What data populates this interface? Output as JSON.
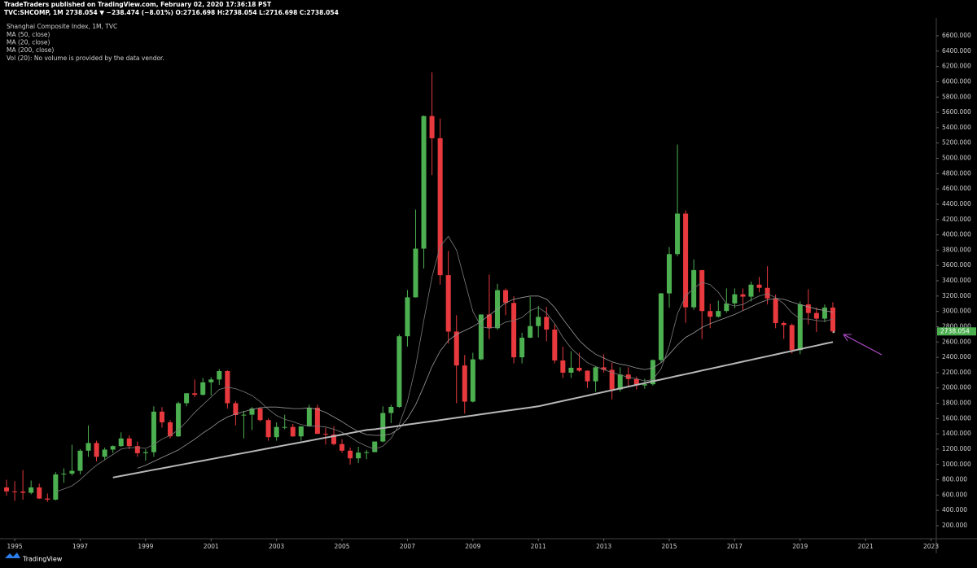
{
  "header": {
    "line1": "TradeTraders published on TradingView.com, February 02, 2020 17:36:18 PST",
    "line2": "TVC:SHCOMP, 1M 2738.054 ▼ −238.474 (−8.01%) O:2716.698 H:2738.054 L:2716.698 C:2738.054"
  },
  "footer": "TradingView",
  "chart_data": {
    "type": "candlestick",
    "title": "Shanghai Composite Index, 1M, TVC",
    "note": "Vol (20): No volume is provided by the data vendor.",
    "up_color": "#4caf50",
    "down_color": "#e8393e",
    "xlim": [
      1994.55,
      2023.16
    ],
    "xticks": [
      1995,
      1997,
      1999,
      2001,
      2003,
      2005,
      2007,
      2009,
      2011,
      2013,
      2015,
      2017,
      2019,
      2021,
      2023
    ],
    "ylim": [
      30,
      6834
    ],
    "yticks": [
      {
        "value": 200,
        "label": "200.000"
      },
      {
        "value": 400,
        "label": "400.000"
      },
      {
        "value": 600,
        "label": "600.000"
      },
      {
        "value": 800,
        "label": "800.000"
      },
      {
        "value": 1000,
        "label": "1000.000"
      },
      {
        "value": 1200,
        "label": "1200.000"
      },
      {
        "value": 1400,
        "label": "1400.000"
      },
      {
        "value": 1600,
        "label": "1600.000"
      },
      {
        "value": 1800,
        "label": "1800.000"
      },
      {
        "value": 2000,
        "label": "2000.000"
      },
      {
        "value": 2200,
        "label": "2200.000"
      },
      {
        "value": 2400,
        "label": "2400.000"
      },
      {
        "value": 2600,
        "label": "2600.000"
      },
      {
        "value": 2800,
        "label": "2800.000"
      },
      {
        "value": 3000,
        "label": "3000.000"
      },
      {
        "value": 3200,
        "label": "3200.000"
      },
      {
        "value": 3400,
        "label": "3400.000"
      },
      {
        "value": 3600,
        "label": "3600.000"
      },
      {
        "value": 3800,
        "label": "3800.000"
      },
      {
        "value": 4000,
        "label": "4000.000"
      },
      {
        "value": 4200,
        "label": "4200.000"
      },
      {
        "value": 4400,
        "label": "4400.000"
      },
      {
        "value": 4600,
        "label": "4600.000"
      },
      {
        "value": 4800,
        "label": "4800.000"
      },
      {
        "value": 5000,
        "label": "5000.000"
      },
      {
        "value": 5200,
        "label": "5200.000"
      },
      {
        "value": 5400,
        "label": "5400.000"
      },
      {
        "value": 5600,
        "label": "5600.000"
      },
      {
        "value": 5800,
        "label": "5800.000"
      },
      {
        "value": 6000,
        "label": "6000.000"
      },
      {
        "value": 6200,
        "label": "6200.000"
      },
      {
        "value": 6400,
        "label": "6400.000"
      },
      {
        "value": 6600,
        "label": "6600.000"
      }
    ],
    "grid": false,
    "x": [
      1994.75,
      1995,
      1995.25,
      1995.5,
      1995.75,
      1996,
      1996.25,
      1996.5,
      1996.75,
      1997,
      1997.25,
      1997.5,
      1997.75,
      1998,
      1998.25,
      1998.5,
      1998.75,
      1999,
      1999.25,
      1999.5,
      1999.75,
      2000,
      2000.25,
      2000.5,
      2000.75,
      2001,
      2001.25,
      2001.5,
      2001.75,
      2002,
      2002.25,
      2002.5,
      2002.75,
      2003,
      2003.25,
      2003.5,
      2003.75,
      2004,
      2004.25,
      2004.5,
      2004.75,
      2005,
      2005.25,
      2005.5,
      2005.75,
      2006,
      2006.25,
      2006.5,
      2006.75,
      2007,
      2007.25,
      2007.5,
      2007.75,
      2008,
      2008.25,
      2008.5,
      2008.75,
      2009,
      2009.25,
      2009.5,
      2009.75,
      2010,
      2010.25,
      2010.5,
      2010.75,
      2011,
      2011.25,
      2011.5,
      2011.75,
      2012,
      2012.25,
      2012.5,
      2012.75,
      2013,
      2013.25,
      2013.5,
      2013.75,
      2014,
      2014.25,
      2014.5,
      2014.75,
      2015,
      2015.25,
      2015.5,
      2015.75,
      2016,
      2016.25,
      2016.5,
      2016.75,
      2017,
      2017.25,
      2017.5,
      2017.75,
      2018,
      2018.25,
      2018.5,
      2018.75,
      2019,
      2019.25,
      2019.5,
      2019.75,
      2020
    ],
    "candles": [
      [
        700,
        800,
        590,
        648
      ],
      [
        648,
        780,
        524,
        646
      ],
      [
        646,
        926,
        540,
        630
      ],
      [
        630,
        790,
        610,
        700
      ],
      [
        700,
        750,
        550,
        555
      ],
      [
        555,
        620,
        512,
        540
      ],
      [
        540,
        900,
        530,
        870
      ],
      [
        870,
        950,
        760,
        880
      ],
      [
        880,
        1258,
        855,
        917
      ],
      [
        917,
        1200,
        870,
        1180
      ],
      [
        1180,
        1510,
        1100,
        1280
      ],
      [
        1280,
        1310,
        1040,
        1100
      ],
      [
        1100,
        1220,
        1060,
        1194
      ],
      [
        1194,
        1250,
        1150,
        1240
      ],
      [
        1240,
        1420,
        1230,
        1340
      ],
      [
        1340,
        1380,
        1200,
        1240
      ],
      [
        1240,
        1300,
        1100,
        1147
      ],
      [
        1147,
        1200,
        1050,
        1160
      ],
      [
        1160,
        1760,
        1100,
        1690
      ],
      [
        1690,
        1750,
        1480,
        1550
      ],
      [
        1550,
        1580,
        1340,
        1367
      ],
      [
        1367,
        1820,
        1360,
        1800
      ],
      [
        1800,
        1930,
        1760,
        1930
      ],
      [
        1930,
        2110,
        1880,
        1910
      ],
      [
        1910,
        2130,
        1900,
        2073
      ],
      [
        2073,
        2140,
        1900,
        2110
      ],
      [
        2110,
        2245,
        2040,
        2220
      ],
      [
        2220,
        2230,
        1730,
        1800
      ],
      [
        1800,
        1830,
        1510,
        1646
      ],
      [
        1646,
        1700,
        1340,
        1650
      ],
      [
        1650,
        1750,
        1450,
        1730
      ],
      [
        1730,
        1750,
        1560,
        1580
      ],
      [
        1580,
        1600,
        1310,
        1357
      ],
      [
        1357,
        1550,
        1310,
        1490
      ],
      [
        1490,
        1650,
        1460,
        1490
      ],
      [
        1490,
        1530,
        1360,
        1367
      ],
      [
        1367,
        1500,
        1310,
        1497
      ],
      [
        1497,
        1780,
        1490,
        1740
      ],
      [
        1740,
        1780,
        1400,
        1400
      ],
      [
        1400,
        1480,
        1260,
        1390
      ],
      [
        1390,
        1500,
        1250,
        1266
      ],
      [
        1266,
        1330,
        1150,
        1180
      ],
      [
        1180,
        1220,
        998,
        1080
      ],
      [
        1080,
        1230,
        1020,
        1155
      ],
      [
        1155,
        1190,
        1070,
        1161
      ],
      [
        1161,
        1300,
        1160,
        1300
      ],
      [
        1300,
        1760,
        1290,
        1672
      ],
      [
        1672,
        1780,
        1540,
        1752
      ],
      [
        1752,
        2700,
        1740,
        2675
      ],
      [
        2675,
        3280,
        2540,
        3183
      ],
      [
        3183,
        4330,
        3180,
        3820
      ],
      [
        3820,
        5560,
        3560,
        5552
      ],
      [
        5552,
        6124,
        4780,
        5262
      ],
      [
        5262,
        5520,
        3350,
        3473
      ],
      [
        3473,
        3790,
        2580,
        2736
      ],
      [
        2736,
        2950,
        1800,
        2293
      ],
      [
        2293,
        2430,
        1664,
        1821
      ],
      [
        1821,
        2460,
        1810,
        2373
      ],
      [
        2373,
        2960,
        2360,
        2959
      ],
      [
        2959,
        3480,
        2640,
        2780
      ],
      [
        2780,
        3360,
        2760,
        3277
      ],
      [
        3277,
        3300,
        2950,
        3110
      ],
      [
        3110,
        3200,
        2320,
        2400
      ],
      [
        2400,
        2720,
        2320,
        2656
      ],
      [
        2656,
        3190,
        2650,
        2808
      ],
      [
        2808,
        3070,
        2660,
        2928
      ],
      [
        2928,
        3060,
        2610,
        2762
      ],
      [
        2762,
        2830,
        2320,
        2359
      ],
      [
        2359,
        2540,
        2130,
        2199
      ],
      [
        2199,
        2480,
        2130,
        2263
      ],
      [
        2263,
        2460,
        2210,
        2225
      ],
      [
        2225,
        2230,
        1999,
        2086
      ],
      [
        2086,
        2280,
        1950,
        2269
      ],
      [
        2269,
        2440,
        2200,
        2236
      ],
      [
        2236,
        2330,
        1850,
        1979
      ],
      [
        1979,
        2270,
        1950,
        2175
      ],
      [
        2175,
        2270,
        2020,
        2116
      ],
      [
        2116,
        2150,
        1980,
        2033
      ],
      [
        2033,
        2120,
        1990,
        2048
      ],
      [
        2048,
        2370,
        2030,
        2364
      ],
      [
        2364,
        3240,
        2330,
        3235
      ],
      [
        3235,
        3840,
        3050,
        3748
      ],
      [
        3748,
        5180,
        3720,
        4277
      ],
      [
        4277,
        4320,
        2850,
        3053
      ],
      [
        3053,
        3680,
        3020,
        3539
      ],
      [
        3539,
        3540,
        2640,
        3004
      ],
      [
        3004,
        3100,
        2780,
        2930
      ],
      [
        2930,
        3140,
        2920,
        3005
      ],
      [
        3005,
        3300,
        2980,
        3104
      ],
      [
        3104,
        3300,
        3040,
        3223
      ],
      [
        3223,
        3300,
        3010,
        3192
      ],
      [
        3192,
        3390,
        3130,
        3349
      ],
      [
        3349,
        3450,
        3250,
        3307
      ],
      [
        3307,
        3590,
        3090,
        3169
      ],
      [
        3169,
        3220,
        2780,
        2847
      ],
      [
        2847,
        2870,
        2640,
        2821
      ],
      [
        2821,
        2840,
        2450,
        2494
      ],
      [
        2494,
        3130,
        2440,
        3091
      ],
      [
        3091,
        3290,
        2830,
        2979
      ],
      [
        2979,
        3050,
        2730,
        2905
      ],
      [
        2905,
        3090,
        2860,
        3050
      ],
      [
        3050,
        3120,
        2716,
        2738.054
      ]
    ],
    "series": [
      {
        "name": "MA (50, close)",
        "color": "#9a9a9a",
        "width": 0.8,
        "values": [
          null,
          null,
          null,
          null,
          null,
          null,
          null,
          null,
          null,
          null,
          null,
          null,
          null,
          null,
          null,
          null,
          950,
          990,
          1040,
          1090,
          1140,
          1190,
          1260,
          1330,
          1410,
          1480,
          1560,
          1620,
          1660,
          1690,
          1720,
          1740,
          1750,
          1750,
          1740,
          1730,
          1730,
          1740,
          1720,
          1680,
          1620,
          1560,
          1490,
          1430,
          1390,
          1380,
          1380,
          1400,
          1470,
          1600,
          1780,
          2020,
          2280,
          2480,
          2620,
          2700,
          2750,
          2800,
          2870,
          2950,
          3030,
          3110,
          3160,
          3180,
          3200,
          3200,
          3160,
          3050,
          2900,
          2760,
          2620,
          2520,
          2440,
          2390,
          2340,
          2310,
          2290,
          2260,
          2240,
          2260,
          2330,
          2440,
          2560,
          2660,
          2720,
          2790,
          2840,
          2880,
          2920,
          2960,
          3010,
          3060,
          3110,
          3150,
          3170,
          3160,
          3120,
          3090,
          3060,
          3030,
          3010,
          2990
        ]
      },
      {
        "name": "MA (20, close)",
        "color": "#7a7a7a",
        "width": 0.8,
        "values": [
          null,
          null,
          null,
          null,
          null,
          null,
          640,
          680,
          720,
          800,
          900,
          990,
          1060,
          1130,
          1200,
          1220,
          1220,
          1210,
          1260,
          1330,
          1380,
          1450,
          1560,
          1680,
          1780,
          1880,
          1980,
          2010,
          1990,
          1950,
          1900,
          1820,
          1720,
          1640,
          1590,
          1560,
          1520,
          1500,
          1500,
          1490,
          1460,
          1420,
          1360,
          1290,
          1240,
          1200,
          1240,
          1340,
          1520,
          1820,
          2280,
          2880,
          3450,
          3850,
          3980,
          3800,
          3400,
          3000,
          2800,
          2780,
          2800,
          2860,
          2880,
          2920,
          3010,
          3050,
          2980,
          2840,
          2660,
          2520,
          2420,
          2330,
          2280,
          2240,
          2200,
          2170,
          2140,
          2120,
          2090,
          2110,
          2250,
          2550,
          2970,
          3200,
          3300,
          3380,
          3350,
          3250,
          3100,
          3070,
          3090,
          3150,
          3200,
          3230,
          3180,
          3100,
          2980,
          2900,
          2900,
          2880,
          2870,
          2900
        ]
      },
      {
        "name": "MA (200, close)",
        "color": "#b8b8b8",
        "width": 2,
        "values": [
          null,
          null,
          null,
          null,
          null,
          null,
          null,
          null,
          null,
          null,
          null,
          null,
          null,
          830,
          850,
          870,
          890,
          910,
          930,
          950,
          970,
          990,
          1010,
          1030,
          1050,
          1070,
          1090,
          1110,
          1130,
          1150,
          1170,
          1190,
          1210,
          1230,
          1250,
          1270,
          1290,
          1310,
          1330,
          1350,
          1370,
          1390,
          1410,
          1430,
          1450,
          1460,
          1475,
          1490,
          1505,
          1520,
          1535,
          1550,
          1565,
          1580,
          1595,
          1610,
          1625,
          1640,
          1655,
          1670,
          1685,
          1700,
          1715,
          1730,
          1745,
          1760,
          1783,
          1807,
          1830,
          1853,
          1877,
          1900,
          1923,
          1947,
          1970,
          1993,
          2017,
          2040,
          2063,
          2087,
          2110,
          2133,
          2157,
          2180,
          2203,
          2227,
          2250,
          2273,
          2297,
          2320,
          2343,
          2367,
          2390,
          2413,
          2437,
          2460,
          2483,
          2507,
          2530,
          2553,
          2577,
          2600
        ]
      }
    ]
  }
}
